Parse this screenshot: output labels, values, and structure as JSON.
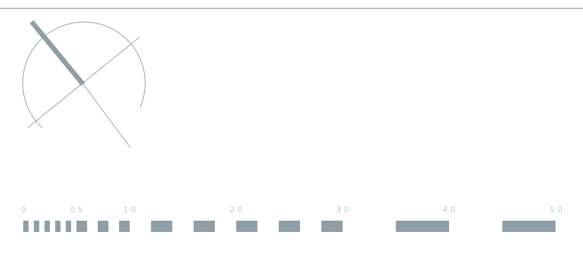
{
  "colors": {
    "ink": "#8e9ea6",
    "rule": "#7d7f80",
    "background": "#ffffff"
  },
  "scale": {
    "labels": [
      {
        "value": 0,
        "text": "0"
      },
      {
        "value": 0.5,
        "text": "0.5"
      },
      {
        "value": 1,
        "text": "1.0"
      },
      {
        "value": 2,
        "text": "2.0"
      },
      {
        "value": 3,
        "text": "3.0"
      },
      {
        "value": 4,
        "text": "4.0"
      },
      {
        "value": 5,
        "text": "5.0"
      }
    ],
    "segments": [
      [
        0.0,
        0.05
      ],
      [
        0.1,
        0.15
      ],
      [
        0.2,
        0.25
      ],
      [
        0.3,
        0.35
      ],
      [
        0.4,
        0.45
      ],
      [
        0.5,
        0.6
      ],
      [
        0.7,
        0.8
      ],
      [
        0.9,
        1.0
      ],
      [
        1.2,
        1.4
      ],
      [
        1.6,
        1.8
      ],
      [
        2.0,
        2.2
      ],
      [
        2.4,
        2.6
      ],
      [
        2.8,
        3.0
      ],
      [
        3.5,
        4.0
      ],
      [
        4.5,
        5.0
      ]
    ]
  }
}
